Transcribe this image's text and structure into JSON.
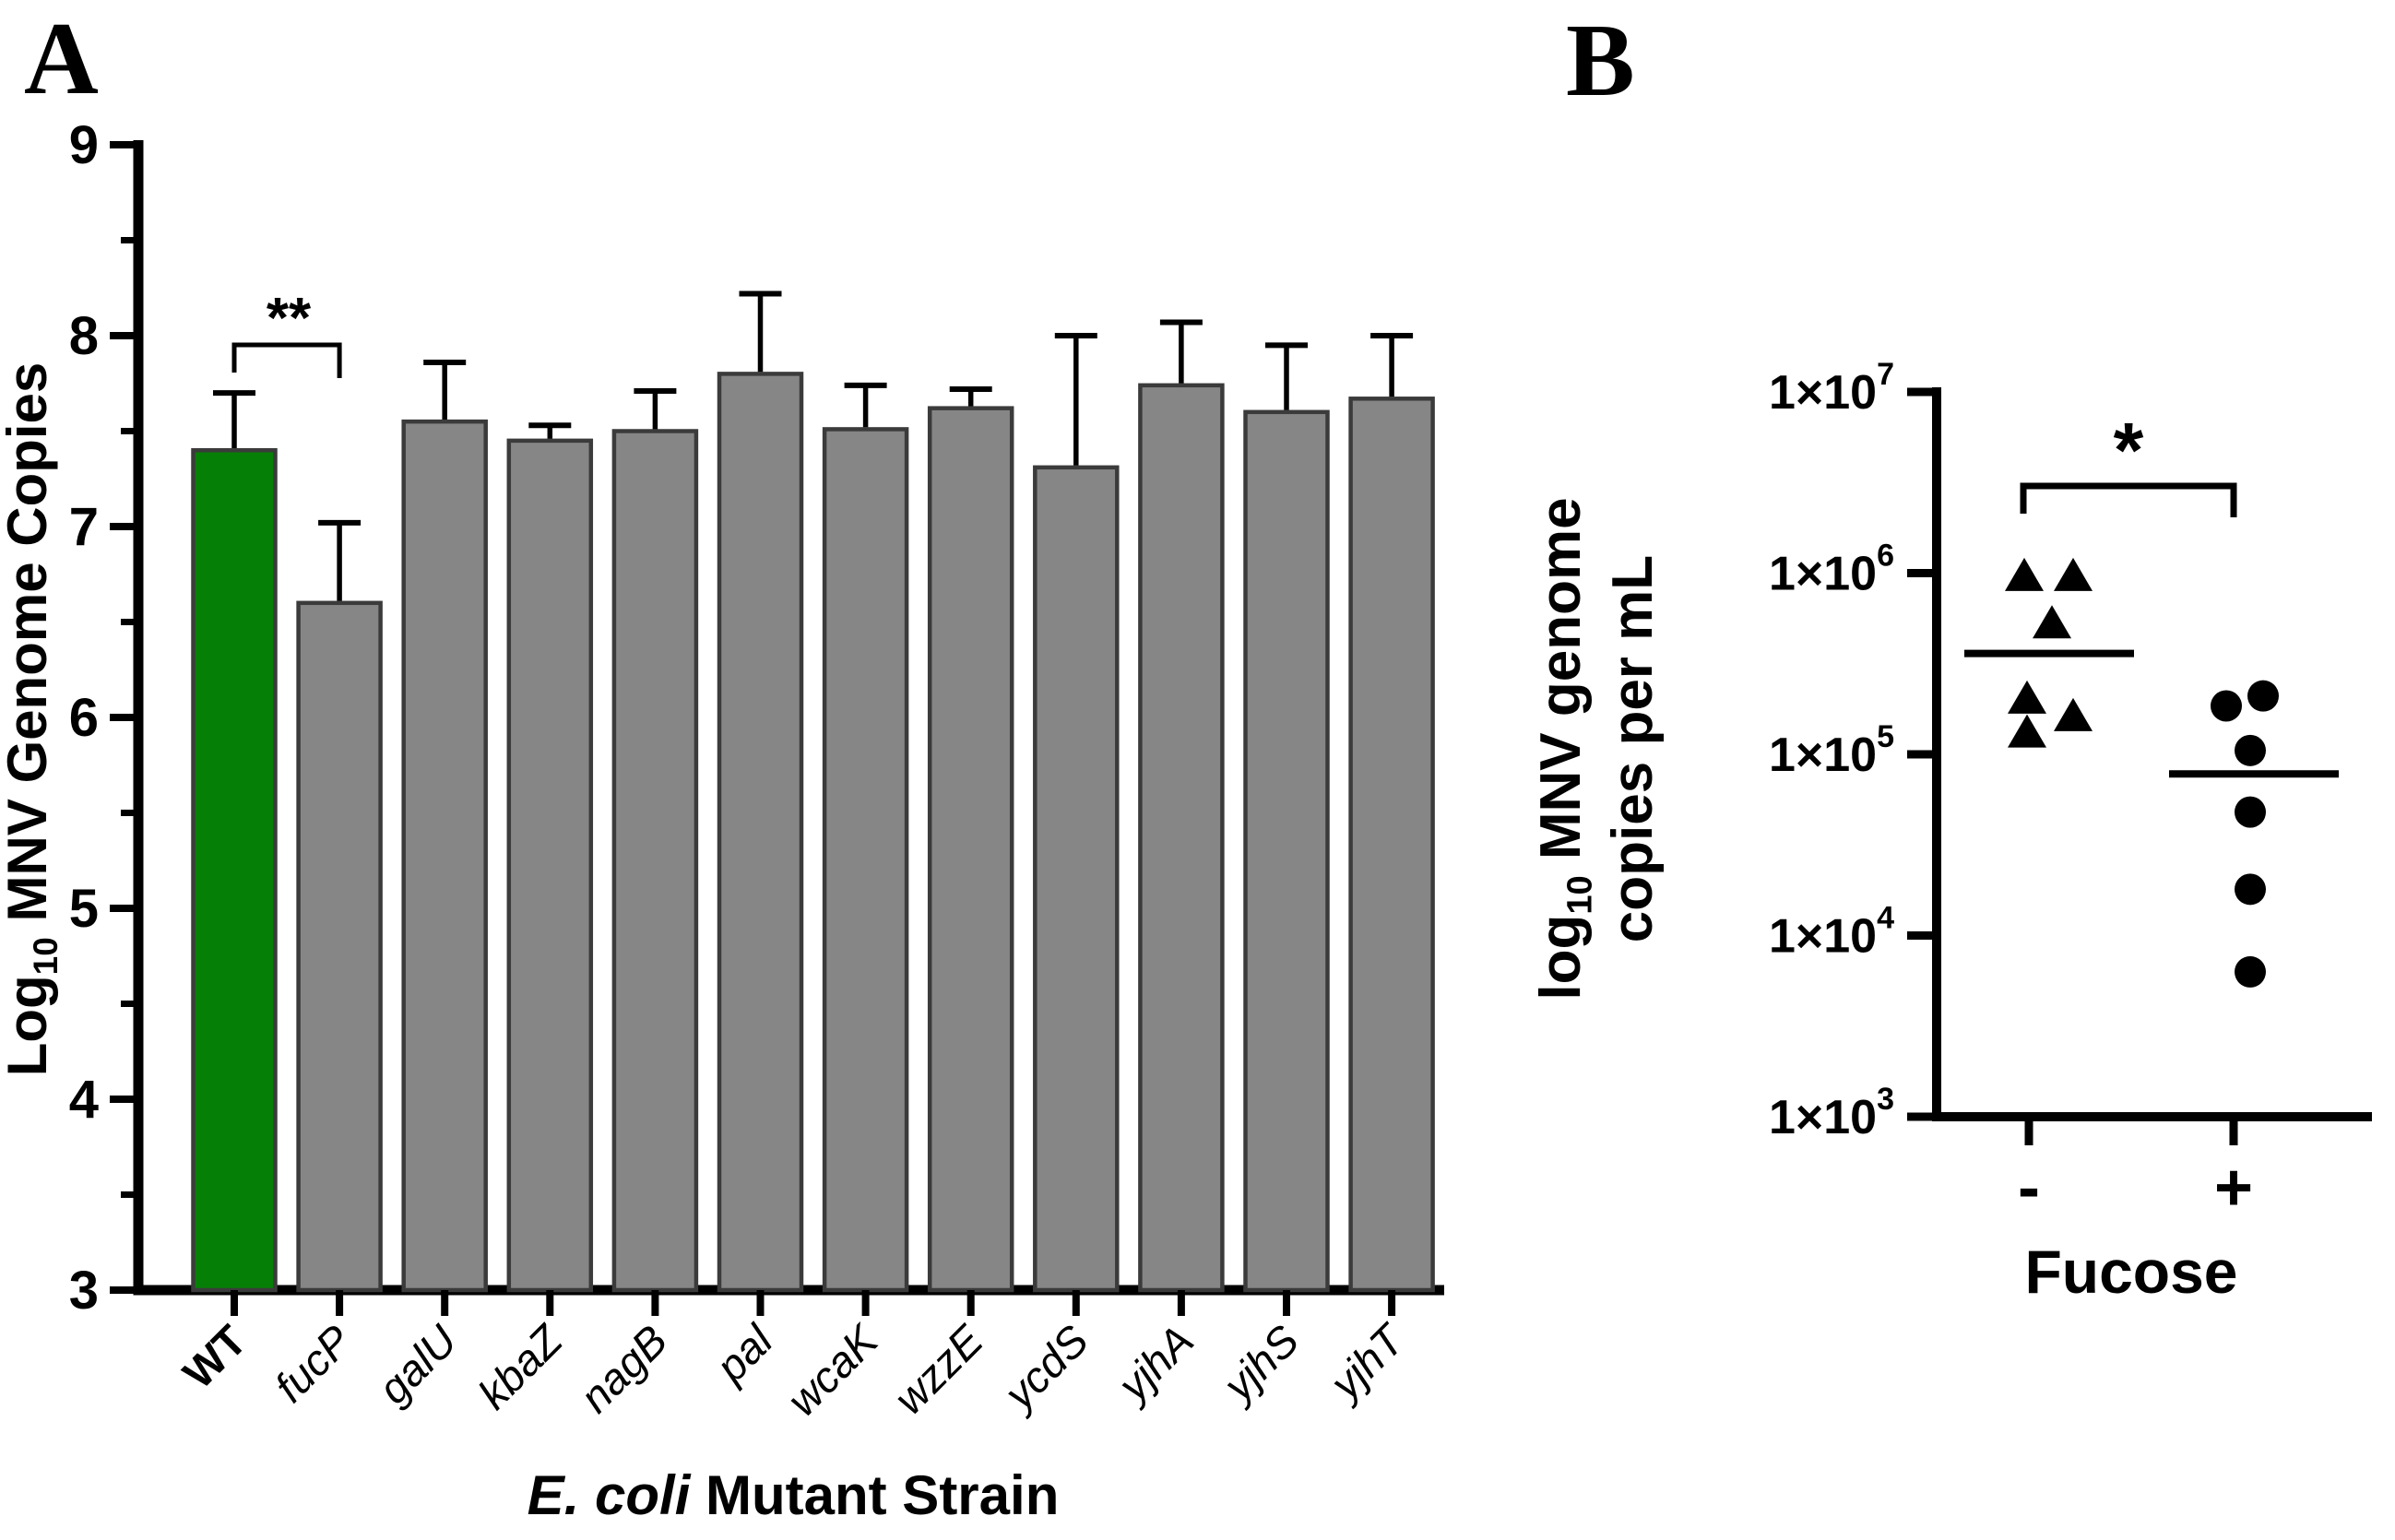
{
  "figure": {
    "background": "#ffffff"
  },
  "colors": {
    "wt_bar": "#067F06",
    "mutant_bar": "#868686",
    "bar_border": "#3B3B3B",
    "axis": "#000000",
    "marker": "#000000"
  },
  "chart_data": [
    {
      "panel_label": "A",
      "type": "bar",
      "title": "",
      "xlabel": "E. coli Mutant Strain",
      "xlabel_parts": [
        {
          "t": "E. coli",
          "italic": true
        },
        {
          "t": " Mutant Strain",
          "italic": false
        }
      ],
      "ylabel": "Log10 MNV Genome Copies",
      "ylabel_parts": [
        {
          "t": "Log",
          "sub": false
        },
        {
          "t": "10",
          "sub": true
        },
        {
          "t": " MNV Genome Copies",
          "sub": false
        }
      ],
      "ylim": [
        3,
        9
      ],
      "yticks": [
        3,
        4,
        5,
        6,
        7,
        8,
        9
      ],
      "yticks_minor": [
        3.5,
        4.5,
        5.5,
        6.5,
        7.5,
        8.5
      ],
      "grid": false,
      "legend": "none",
      "categories": [
        {
          "label": "WT",
          "italic": false,
          "bold": true
        },
        {
          "label": "fucP",
          "italic": true,
          "bold": false
        },
        {
          "label": "galU",
          "italic": true,
          "bold": false
        },
        {
          "label": "kbaZ",
          "italic": true,
          "bold": false
        },
        {
          "label": "nagB",
          "italic": true,
          "bold": false
        },
        {
          "label": "pal",
          "italic": true,
          "bold": false
        },
        {
          "label": "wcaK",
          "italic": true,
          "bold": false
        },
        {
          "label": "wzzE",
          "italic": true,
          "bold": false
        },
        {
          "label": "ycdS",
          "italic": true,
          "bold": false
        },
        {
          "label": "yjhA",
          "italic": true,
          "bold": false
        },
        {
          "label": "yjhS",
          "italic": true,
          "bold": false
        },
        {
          "label": "yjhT",
          "italic": true,
          "bold": false
        }
      ],
      "values": [
        7.4,
        6.6,
        7.55,
        7.45,
        7.5,
        7.8,
        7.51,
        7.62,
        7.31,
        7.74,
        7.6,
        7.67
      ],
      "errors_up": [
        0.3,
        0.42,
        0.31,
        0.08,
        0.21,
        0.42,
        0.23,
        0.1,
        0.69,
        0.33,
        0.35,
        0.33
      ],
      "highlight_category": "WT",
      "significance": {
        "label": "**",
        "between": [
          "WT",
          "fucP"
        ]
      }
    },
    {
      "panel_label": "B",
      "type": "scatter",
      "title": "",
      "xlabel": "Fucose",
      "ylabel": "log10 MNV genome copies per mL",
      "ylabel_lines": [
        [
          {
            "t": "log",
            "sub": false
          },
          {
            "t": "10",
            "sub": true
          },
          {
            "t": " MNV genome",
            "sub": false
          }
        ],
        [
          {
            "t": "copies per mL",
            "sub": false
          }
        ]
      ],
      "yscale": "log",
      "ylim": [
        1000,
        10000000
      ],
      "yticks": [
        {
          "base": "1×10",
          "exp": "7",
          "exp_num": 7
        },
        {
          "base": "1×10",
          "exp": "6",
          "exp_num": 6
        },
        {
          "base": "1×10",
          "exp": "5",
          "exp_num": 5
        },
        {
          "base": "1×10",
          "exp": "4",
          "exp_num": 4
        },
        {
          "base": "1×10",
          "exp": "3",
          "exp_num": 3
        }
      ],
      "grid": false,
      "legend": "none",
      "groups": [
        {
          "label": "-",
          "marker": "triangle",
          "mean": 360000,
          "points": [
            {
              "v": 950000,
              "dx": -5
            },
            {
              "v": 950000,
              "dx": 48
            },
            {
              "v": 520000,
              "dx": 25
            },
            {
              "v": 200000,
              "dx": -2
            },
            {
              "v": 160000,
              "dx": 48
            },
            {
              "v": 130000,
              "dx": -2
            }
          ]
        },
        {
          "label": "+",
          "marker": "circle",
          "mean": 78000,
          "points": [
            {
              "v": 210000,
              "dx": 32
            },
            {
              "v": 185000,
              "dx": -8
            },
            {
              "v": 105000,
              "dx": 18
            },
            {
              "v": 48000,
              "dx": 18
            },
            {
              "v": 18000,
              "dx": 18
            },
            {
              "v": 6300,
              "dx": 18
            }
          ]
        }
      ],
      "significance": {
        "label": "*",
        "between": [
          "-",
          "+"
        ]
      }
    }
  ]
}
